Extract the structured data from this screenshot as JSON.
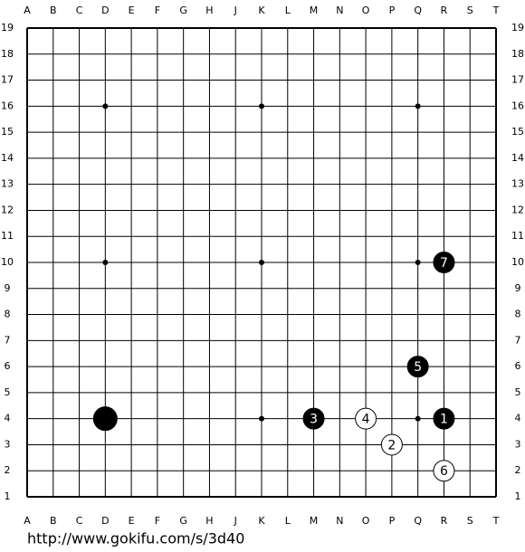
{
  "board": {
    "columns": [
      "A",
      "B",
      "C",
      "D",
      "E",
      "F",
      "G",
      "H",
      "J",
      "K",
      "L",
      "M",
      "N",
      "O",
      "P",
      "Q",
      "R",
      "S",
      "T"
    ],
    "rows": [
      19,
      18,
      17,
      16,
      15,
      14,
      13,
      12,
      11,
      10,
      9,
      8,
      7,
      6,
      5,
      4,
      3,
      2,
      1
    ],
    "stones": [
      {
        "col": "D",
        "row": 4,
        "color": "black"
      },
      {
        "col": "R",
        "row": 4,
        "color": "black",
        "label": "1"
      },
      {
        "col": "P",
        "row": 3,
        "color": "white",
        "label": "2"
      },
      {
        "col": "M",
        "row": 4,
        "color": "black",
        "label": "3"
      },
      {
        "col": "O",
        "row": 4,
        "color": "white",
        "label": "4"
      },
      {
        "col": "Q",
        "row": 6,
        "color": "black",
        "label": "5"
      },
      {
        "col": "R",
        "row": 2,
        "color": "white",
        "label": "6"
      },
      {
        "col": "R",
        "row": 10,
        "color": "black",
        "label": "7"
      }
    ]
  },
  "footer": {
    "url": "http://www.gokifu.com/s/3d40"
  }
}
